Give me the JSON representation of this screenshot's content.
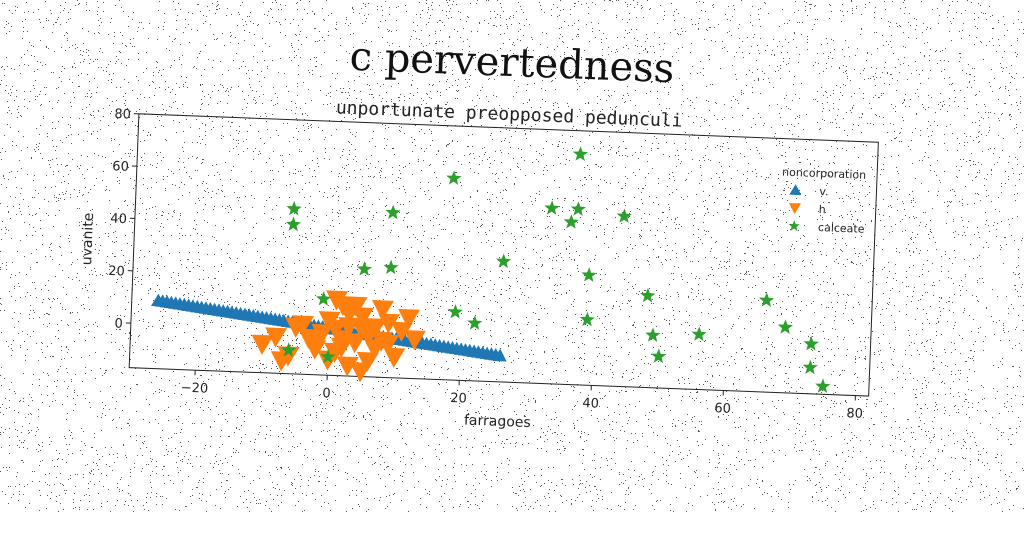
{
  "title": "c pervertedness",
  "chart_data": {
    "type": "scatter",
    "title": "unportunate preopposed pedunculi",
    "xlabel": "farragoes",
    "ylabel": "uvanite",
    "xlim": [
      -30,
      82
    ],
    "ylim": [
      -17,
      80
    ],
    "xticks": [
      -20,
      0,
      20,
      40,
      60,
      80
    ],
    "yticks": [
      0,
      20,
      40,
      60,
      80
    ],
    "grid": false,
    "legend": {
      "title": "noncorporation",
      "position": "top-right"
    },
    "series": [
      {
        "name": "v.",
        "marker": "triangle-up",
        "color": "#1f77b4",
        "line_from": [
          -26,
          9
        ],
        "line_to": [
          26,
          -7
        ],
        "count": 80
      },
      {
        "name": "h",
        "marker": "triangle-down",
        "color": "#ff7f0e",
        "points": [
          [
            -10,
            -6
          ],
          [
            -8,
            -3
          ],
          [
            -7,
            -12
          ],
          [
            -6,
            -10
          ],
          [
            -5,
            1
          ],
          [
            -4,
            2
          ],
          [
            -3,
            -3
          ],
          [
            -2,
            -7
          ],
          [
            -1,
            -1
          ],
          [
            0,
            4
          ],
          [
            0,
            -11
          ],
          [
            1,
            1
          ],
          [
            1,
            12
          ],
          [
            2,
            -3
          ],
          [
            2,
            -6
          ],
          [
            2,
            10
          ],
          [
            3,
            -13
          ],
          [
            3,
            2
          ],
          [
            4,
            -4
          ],
          [
            4,
            10
          ],
          [
            5,
            -15
          ],
          [
            5,
            6
          ],
          [
            6,
            -11
          ],
          [
            6,
            -1
          ],
          [
            7,
            2
          ],
          [
            7,
            -6
          ],
          [
            8,
            -3
          ],
          [
            9,
            4
          ],
          [
            9,
            -4
          ],
          [
            10,
            -9
          ],
          [
            11,
            1
          ],
          [
            12,
            6
          ],
          [
            13,
            -2
          ],
          [
            3,
            7
          ],
          [
            -2,
            -5
          ],
          [
            5,
            1
          ],
          [
            1,
            -8
          ],
          [
            8,
            9
          ]
        ]
      },
      {
        "name": "calceate",
        "marker": "star",
        "color": "#2ca02c",
        "points": [
          [
            -6,
            46
          ],
          [
            -6,
            40
          ],
          [
            -6,
            -8
          ],
          [
            -1,
            12
          ],
          [
            0,
            -10
          ],
          [
            5,
            24
          ],
          [
            9,
            46
          ],
          [
            9,
            25
          ],
          [
            18,
            60
          ],
          [
            19,
            9
          ],
          [
            22,
            5
          ],
          [
            26,
            29
          ],
          [
            33,
            50
          ],
          [
            36,
            45
          ],
          [
            37,
            71
          ],
          [
            37,
            50
          ],
          [
            39,
            25
          ],
          [
            39,
            8
          ],
          [
            44,
            48
          ],
          [
            48,
            18
          ],
          [
            49,
            3
          ],
          [
            50,
            -5
          ],
          [
            56,
            4
          ],
          [
            66,
            18
          ],
          [
            69,
            8
          ],
          [
            73,
            2
          ],
          [
            73,
            -7
          ],
          [
            75,
            -14
          ]
        ]
      }
    ]
  }
}
